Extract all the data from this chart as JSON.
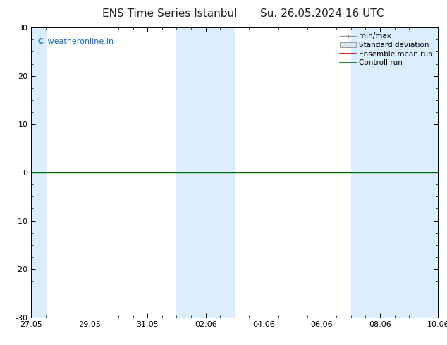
{
  "title": "ENS Time Series Istanbul",
  "title2": "Su. 26.05.2024 16 UTC",
  "watermark": "© weatheronline.in",
  "watermark_color": "#1a6db5",
  "x_ticks_labels": [
    "27.05",
    "29.05",
    "31.05",
    "02.06",
    "04.06",
    "06.06",
    "08.06",
    "10.06"
  ],
  "x_ticks_days": [
    0,
    2,
    4,
    6,
    8,
    10,
    12,
    14
  ],
  "xlim": [
    0,
    14
  ],
  "ylim": [
    -30,
    30
  ],
  "y_ticks": [
    -30,
    -20,
    -10,
    0,
    10,
    20,
    30
  ],
  "shaded_bands": [
    {
      "x_start": 0,
      "x_end": 0.5
    },
    {
      "x_start": 5.0,
      "x_end": 7.0
    },
    {
      "x_start": 11.0,
      "x_end": 14.0
    }
  ],
  "shaded_color": "#dbeeff",
  "hline_y": 0,
  "hline_color": "#006600",
  "background_color": "#ffffff",
  "title_fontsize": 11,
  "tick_fontsize": 8,
  "legend_fontsize": 7.5,
  "watermark_fontsize": 8
}
